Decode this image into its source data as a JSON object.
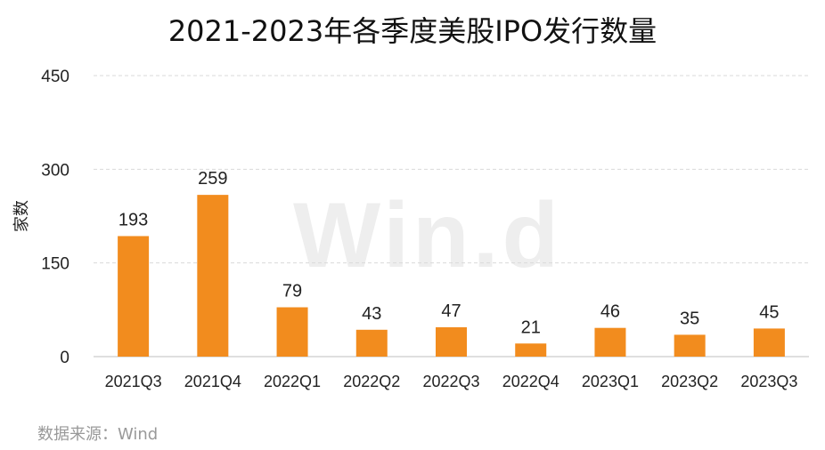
{
  "chart_data": {
    "type": "bar",
    "title": "2021-2023年各季度美股IPO发行数量",
    "xlabel": "",
    "ylabel": "家数",
    "categories": [
      "2021Q3",
      "2021Q4",
      "2022Q1",
      "2022Q2",
      "2022Q3",
      "2022Q4",
      "2023Q1",
      "2023Q2",
      "2023Q3"
    ],
    "values": [
      193,
      259,
      79,
      43,
      47,
      21,
      46,
      35,
      45
    ],
    "ylim": [
      0,
      450
    ],
    "yticks": [
      0,
      150,
      300,
      450
    ],
    "grid": true,
    "legend": "none",
    "bar_color": "#F28C1E",
    "gridline_color": "#d9d9d9"
  },
  "watermark": "Win.d",
  "source": "数据来源：Wind"
}
